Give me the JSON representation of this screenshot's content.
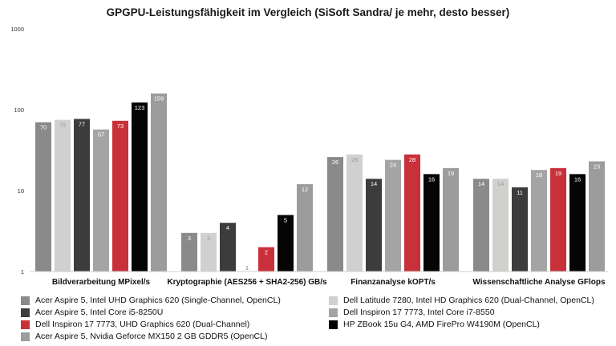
{
  "chart_data": {
    "type": "bar",
    "title": "GPGPU-Leistungsfähigkeit im Vergleich (SiSoft Sandra/ je mehr, desto besser)",
    "y_scale": "log",
    "ylim": [
      1,
      1000
    ],
    "y_ticks": [
      1,
      10,
      100,
      1000
    ],
    "grid": false,
    "legend_position": "bottom",
    "categories": [
      "Bildverarbeitung MPixel/s",
      "Kryptographie (AES256 + SHA2-256) GB/s",
      "Finanzanalyse kOPT/s",
      "Wissenschaftliche Analyse GFlops"
    ],
    "series": [
      {
        "name": "Acer Aspire 5, Intel UHD Graphics 620 (Single-Channel, OpenCL)",
        "color": "#8a8a8a",
        "values": [
          70,
          3,
          26,
          14
        ]
      },
      {
        "name": "Dell Latitude 7280, Intel HD Graphics 620 (Dual-Channel, OpenCL)",
        "color": "#d0d0ce",
        "values": [
          75,
          3,
          28,
          14
        ]
      },
      {
        "name": "Acer Aspire 5, Intel Core i5-8250U",
        "color": "#3c3c3c",
        "values": [
          77,
          4,
          14,
          11
        ]
      },
      {
        "name": "Dell Inspiron 17 7773, Intel Core i7-8550",
        "color": "#a4a4a4",
        "values": [
          57,
          1,
          24,
          18
        ]
      },
      {
        "name": "Dell Inspiron 17 7773, UHD Graphics 620 (Dual-Channel)",
        "color": "#c8303a",
        "values": [
          73,
          2,
          28,
          19
        ]
      },
      {
        "name": "HP ZBook 15u G4, AMD FirePro W4190M (OpenCL)",
        "color": "#050505",
        "values": [
          123,
          5,
          16,
          16
        ]
      },
      {
        "name": "Acer Aspire 5, Nvidia Geforce MX150 2 GB GDDR5 (OpenCL)",
        "color": "#9c9c9c",
        "values": [
          159,
          12,
          19,
          23
        ]
      }
    ],
    "legend": [
      {
        "series": 0,
        "label": "Acer Aspire 5, Intel UHD Graphics 620 (Single-Channel, OpenCL)"
      },
      {
        "series": 1,
        "label": "Dell Latitude 7280, Intel HD Graphics 620 (Dual-Channel, OpenCL)"
      },
      {
        "series": 2,
        "label": "Acer Aspire 5, Intel Core i5-8250U"
      },
      {
        "series": 3,
        "label": "Dell Inspiron 17 7773, Intel Core i7-8550"
      },
      {
        "series": 4,
        "label": "Dell Inspiron 17 7773, UHD Graphics 620 (Dual-Channel)"
      },
      {
        "series": 5,
        "label": "HP ZBook 15u G4, AMD FirePro W4190M (OpenCL)"
      },
      {
        "series": 6,
        "label": "Acer Aspire 5, Nvidia Geforce MX150 2 GB GDDR5 (OpenCL)"
      }
    ]
  }
}
